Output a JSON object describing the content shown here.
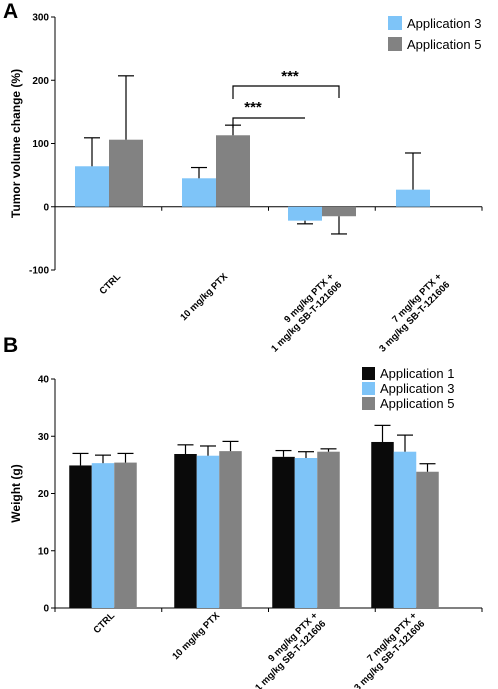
{
  "chart_data": [
    {
      "panel": "A",
      "type": "bar",
      "ylabel": "Tumor volume change (%)",
      "xlabel": "",
      "ylim": [
        -100,
        300
      ],
      "yticks": [
        "-100",
        "0",
        "100",
        "200",
        "300"
      ],
      "categories": [
        [
          "CTRL"
        ],
        [
          "10 mg/kg PTX"
        ],
        [
          "9 mg/kg PTX +",
          "1 mg/kg SB-T-121606"
        ],
        [
          "7 mg/kg PTX +",
          "3 mg/kg SB-T-121606"
        ]
      ],
      "legend_position": "top-right",
      "series": [
        {
          "name": "Application 3",
          "color": "#7ec4f8",
          "values": [
            64,
            45,
            -22,
            27
          ],
          "errors": [
            45,
            17,
            5,
            58
          ]
        },
        {
          "name": "Application 5",
          "color": "#828282",
          "values": [
            106,
            113,
            -15,
            null
          ],
          "errors": [
            101,
            16,
            28,
            null
          ]
        }
      ],
      "annotations": [
        {
          "text": "***",
          "from": {
            "category": 1,
            "series": 1
          },
          "to": {
            "category": 2,
            "series": 0
          }
        },
        {
          "text": "***",
          "from": {
            "category": 1,
            "series": 1
          },
          "to": {
            "category": 2,
            "series": 1
          }
        }
      ]
    },
    {
      "panel": "B",
      "type": "bar",
      "ylabel": "Weight (g)",
      "xlabel": "",
      "ylim": [
        0,
        40
      ],
      "yticks": [
        "0",
        "10",
        "20",
        "30",
        "40"
      ],
      "categories": [
        [
          "CTRL"
        ],
        [
          "10 mg/kg PTX"
        ],
        [
          "9 mg/kg PTX +",
          "1 mg/kg SB-T-121606"
        ],
        [
          "7 mg/kg PTX +",
          "3 mg/kg SB-T-121606"
        ]
      ],
      "legend_position": "top-right",
      "series": [
        {
          "name": "Application 1",
          "color": "#0a0a0a",
          "values": [
            24.9,
            26.9,
            26.4,
            29.0
          ],
          "errors": [
            2.1,
            1.6,
            1.1,
            2.9
          ]
        },
        {
          "name": "Application 3",
          "color": "#7ec4f8",
          "values": [
            25.3,
            26.6,
            26.2,
            27.3
          ],
          "errors": [
            1.4,
            1.7,
            1.1,
            2.9
          ]
        },
        {
          "name": "Application 5",
          "color": "#828282",
          "values": [
            25.4,
            27.4,
            27.3,
            23.8
          ],
          "errors": [
            1.6,
            1.7,
            0.5,
            1.4
          ]
        }
      ]
    }
  ]
}
